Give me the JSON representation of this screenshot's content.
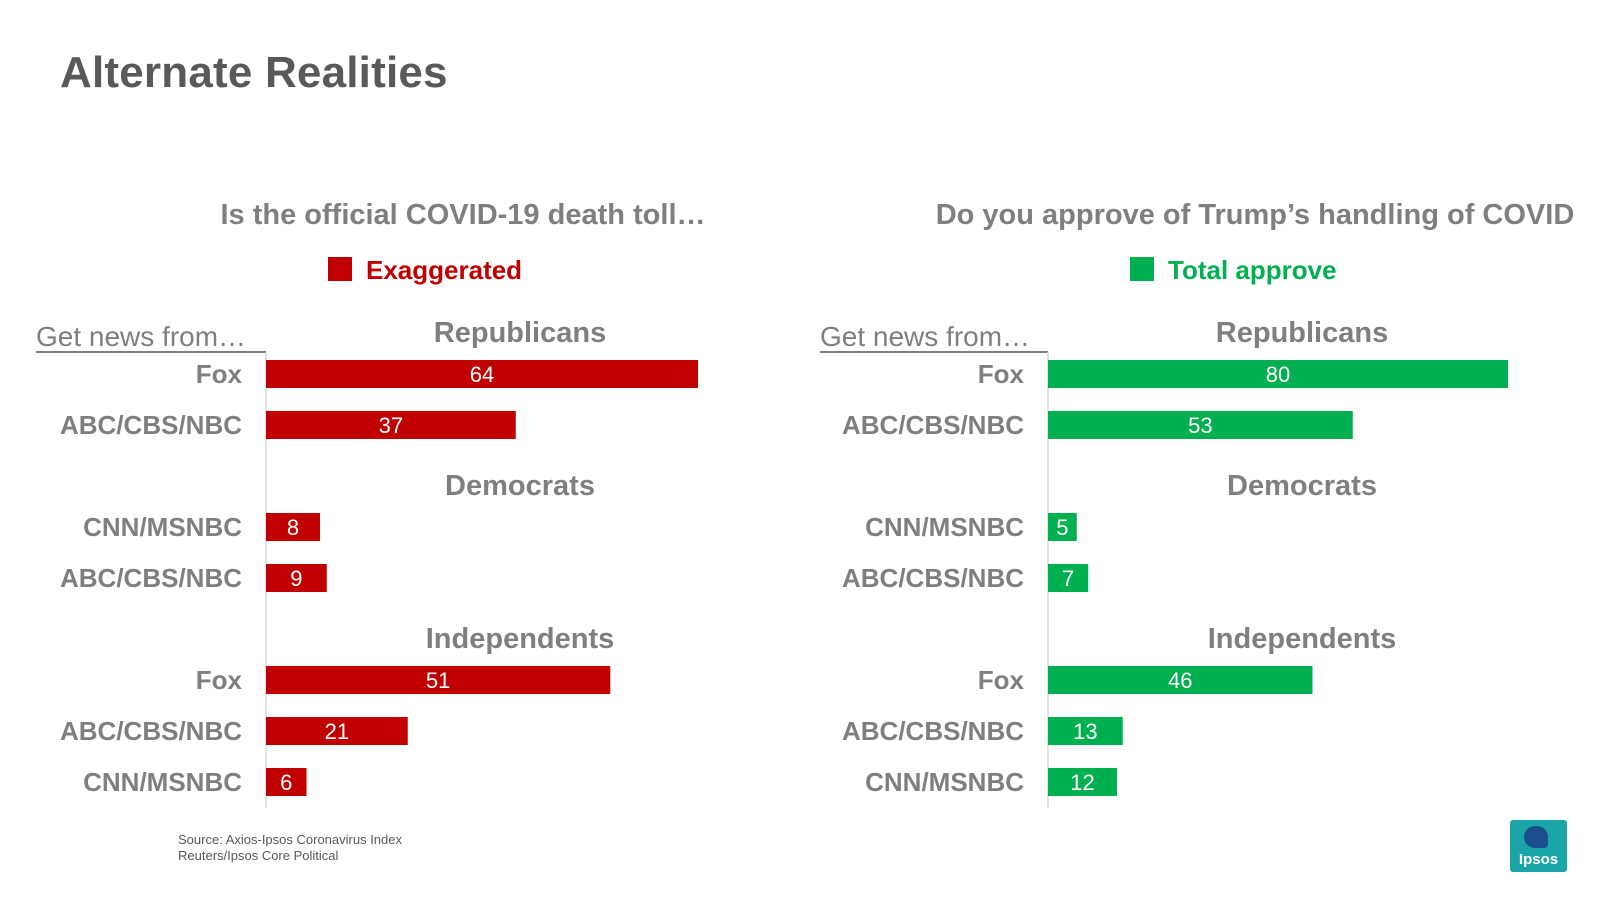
{
  "title": "Alternate Realities",
  "source_lines": [
    "Source: Axios-Ipsos Coronavirus Index",
    "Reuters/Ipsos Core Political"
  ],
  "logo_text": "Ipsos",
  "chart_data": [
    {
      "type": "bar",
      "orientation": "horizontal",
      "title": "Is the official COVID-19 death toll…",
      "legend": "Exaggerated",
      "color": "#c00000",
      "axis_label": "Get news from…",
      "xlim": [
        0,
        100
      ],
      "groups": [
        {
          "name": "Republicans",
          "rows": [
            {
              "label": "Fox",
              "value": 64
            },
            {
              "label": "ABC/CBS/NBC",
              "value": 37
            }
          ]
        },
        {
          "name": "Democrats",
          "rows": [
            {
              "label": "CNN/MSNBC",
              "value": 8
            },
            {
              "label": "ABC/CBS/NBC",
              "value": 9
            }
          ]
        },
        {
          "name": "Independents",
          "rows": [
            {
              "label": "Fox",
              "value": 51
            },
            {
              "label": "ABC/CBS/NBC",
              "value": 21
            },
            {
              "label": "CNN/MSNBC",
              "value": 6
            }
          ]
        }
      ]
    },
    {
      "type": "bar",
      "orientation": "horizontal",
      "title": "Do you approve of Trump’s handling of COVID",
      "legend": "Total approve",
      "color": "#00b050",
      "axis_label": "Get news from…",
      "xlim": [
        0,
        100
      ],
      "groups": [
        {
          "name": "Republicans",
          "rows": [
            {
              "label": "Fox",
              "value": 80
            },
            {
              "label": "ABC/CBS/NBC",
              "value": 53
            }
          ]
        },
        {
          "name": "Democrats",
          "rows": [
            {
              "label": "CNN/MSNBC",
              "value": 5
            },
            {
              "label": "ABC/CBS/NBC",
              "value": 7
            }
          ]
        },
        {
          "name": "Independents",
          "rows": [
            {
              "label": "Fox",
              "value": 46
            },
            {
              "label": "ABC/CBS/NBC",
              "value": 13
            },
            {
              "label": "CNN/MSNBC",
              "value": 12
            }
          ]
        }
      ]
    }
  ]
}
